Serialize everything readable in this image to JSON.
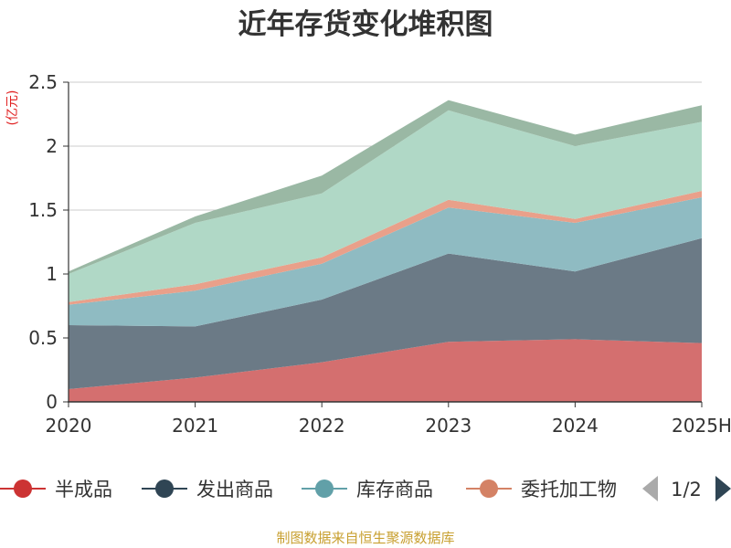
{
  "chart_data": {
    "type": "area",
    "stacked": true,
    "title": "近年存货变化堆积图",
    "ylabel": "(亿元)",
    "ylim": [
      0,
      2.5
    ],
    "yticks": [
      0,
      0.5,
      1,
      1.5,
      2,
      2.5
    ],
    "ytick_labels": [
      "0",
      "0.5",
      "1",
      "1.5",
      "2",
      "2.5"
    ],
    "categories": [
      "2020",
      "2021",
      "2022",
      "2023",
      "2024",
      "2025H"
    ],
    "grid": true,
    "legend_position": "bottom",
    "series": [
      {
        "name": "半成品",
        "color": "#d46f6f",
        "values": [
          0.1,
          0.19,
          0.31,
          0.47,
          0.49,
          0.46
        ]
      },
      {
        "name": "发出商品",
        "color": "#6b7a86",
        "values": [
          0.5,
          0.4,
          0.49,
          0.69,
          0.53,
          0.82
        ]
      },
      {
        "name": "库存商品",
        "color": "#8fbbc2",
        "values": [
          0.16,
          0.28,
          0.28,
          0.36,
          0.38,
          0.32
        ]
      },
      {
        "name": "委托加工物资",
        "color": "#e9a08a",
        "values": [
          0.02,
          0.05,
          0.05,
          0.06,
          0.03,
          0.05
        ]
      },
      {
        "color": "#b0d8c6",
        "values": [
          0.22,
          0.48,
          0.5,
          0.7,
          0.57,
          0.54
        ]
      },
      {
        "color": "#9ab8a4",
        "values": [
          0.02,
          0.05,
          0.14,
          0.08,
          0.09,
          0.13
        ]
      }
    ]
  },
  "legend": {
    "items": [
      {
        "label": "半成品",
        "color": "#cc3333"
      },
      {
        "label": "发出商品",
        "color": "#2f4554"
      },
      {
        "label": "库存商品",
        "color": "#61a0a8"
      },
      {
        "label": "委托加工物",
        "color": "#d48265"
      }
    ],
    "page": "1/2"
  },
  "source": "制图数据来自恒生聚源数据库"
}
